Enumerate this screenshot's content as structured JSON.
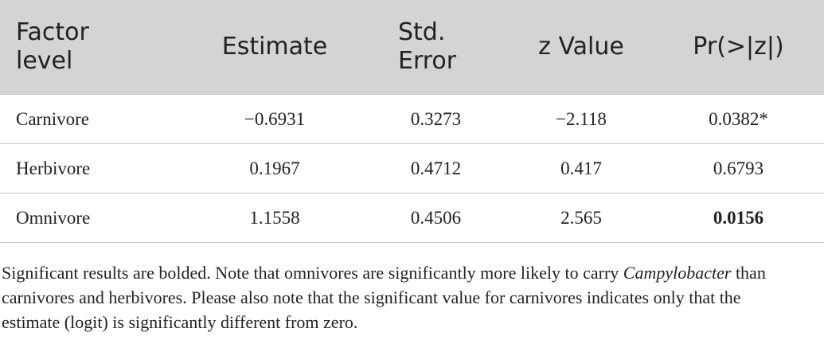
{
  "table": {
    "header": [
      "Factor level",
      "Estimate",
      "Std. Error",
      "z Value",
      "Pr(>|z|)"
    ],
    "rows": [
      [
        {
          "text": "Carnivore"
        },
        {
          "text": "−0.6931"
        },
        {
          "text": "0.3273"
        },
        {
          "text": "−2.118"
        },
        {
          "text": "0.0382*"
        }
      ],
      [
        {
          "text": "Herbivore"
        },
        {
          "text": "0.1967"
        },
        {
          "text": "0.4712"
        },
        {
          "text": "0.417"
        },
        {
          "text": "0.6793"
        }
      ],
      [
        {
          "text": "Omnivore"
        },
        {
          "text": "1.1558"
        },
        {
          "text": "0.4506"
        },
        {
          "text": "2.565"
        },
        {
          "text": "0.0156",
          "bold": true
        }
      ]
    ]
  },
  "note": [
    {
      "text": "Significant results are bolded. Note that omnivores are significantly more likely to carry "
    },
    {
      "text": "Campylobacter",
      "italic": true
    },
    {
      "text": " than carnivores and herbivores. Please also note that the significant value for carnivores indicates only that the estimate (logit) is significantly different from zero."
    }
  ]
}
